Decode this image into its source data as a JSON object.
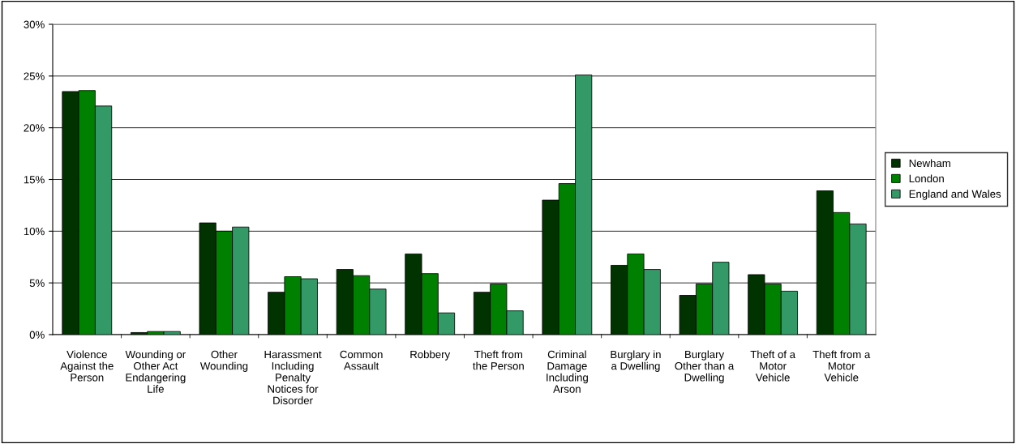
{
  "chart_data": {
    "type": "bar",
    "categories": [
      "Violence Against the Person",
      "Wounding or Other Act Endangering Life",
      "Other Wounding",
      "Harassment Including Penalty Notices for Disorder",
      "Common Assault",
      "Robbery",
      "Theft from the Person",
      "Criminal Damage Including Arson",
      "Burglary in a Dwelling",
      "Burglary Other than a Dwelling",
      "Theft of a Motor Vehicle",
      "Theft from a Motor Vehicle"
    ],
    "series": [
      {
        "name": "Newham",
        "color": "#003300",
        "values": [
          23.5,
          0.2,
          10.8,
          4.1,
          6.3,
          7.8,
          4.1,
          13.0,
          6.7,
          3.8,
          5.8,
          13.9
        ]
      },
      {
        "name": "London",
        "color": "#008000",
        "values": [
          23.6,
          0.3,
          10.0,
          5.6,
          5.7,
          5.9,
          4.9,
          14.6,
          7.8,
          4.9,
          4.9,
          11.8
        ]
      },
      {
        "name": "England and Wales",
        "color": "#339966",
        "values": [
          22.1,
          0.3,
          10.4,
          5.4,
          4.4,
          2.1,
          2.3,
          25.1,
          6.3,
          7.0,
          4.2,
          10.7
        ]
      }
    ],
    "ylim": [
      0,
      30
    ],
    "yticks": [
      {
        "value": 0,
        "label": "0%"
      },
      {
        "value": 5,
        "label": "5%"
      },
      {
        "value": 10,
        "label": "10%"
      },
      {
        "value": 15,
        "label": "15%"
      },
      {
        "value": 20,
        "label": "20%"
      },
      {
        "value": 25,
        "label": "25%"
      },
      {
        "value": 30,
        "label": "30%"
      }
    ],
    "grid": "y",
    "legend": "right"
  }
}
